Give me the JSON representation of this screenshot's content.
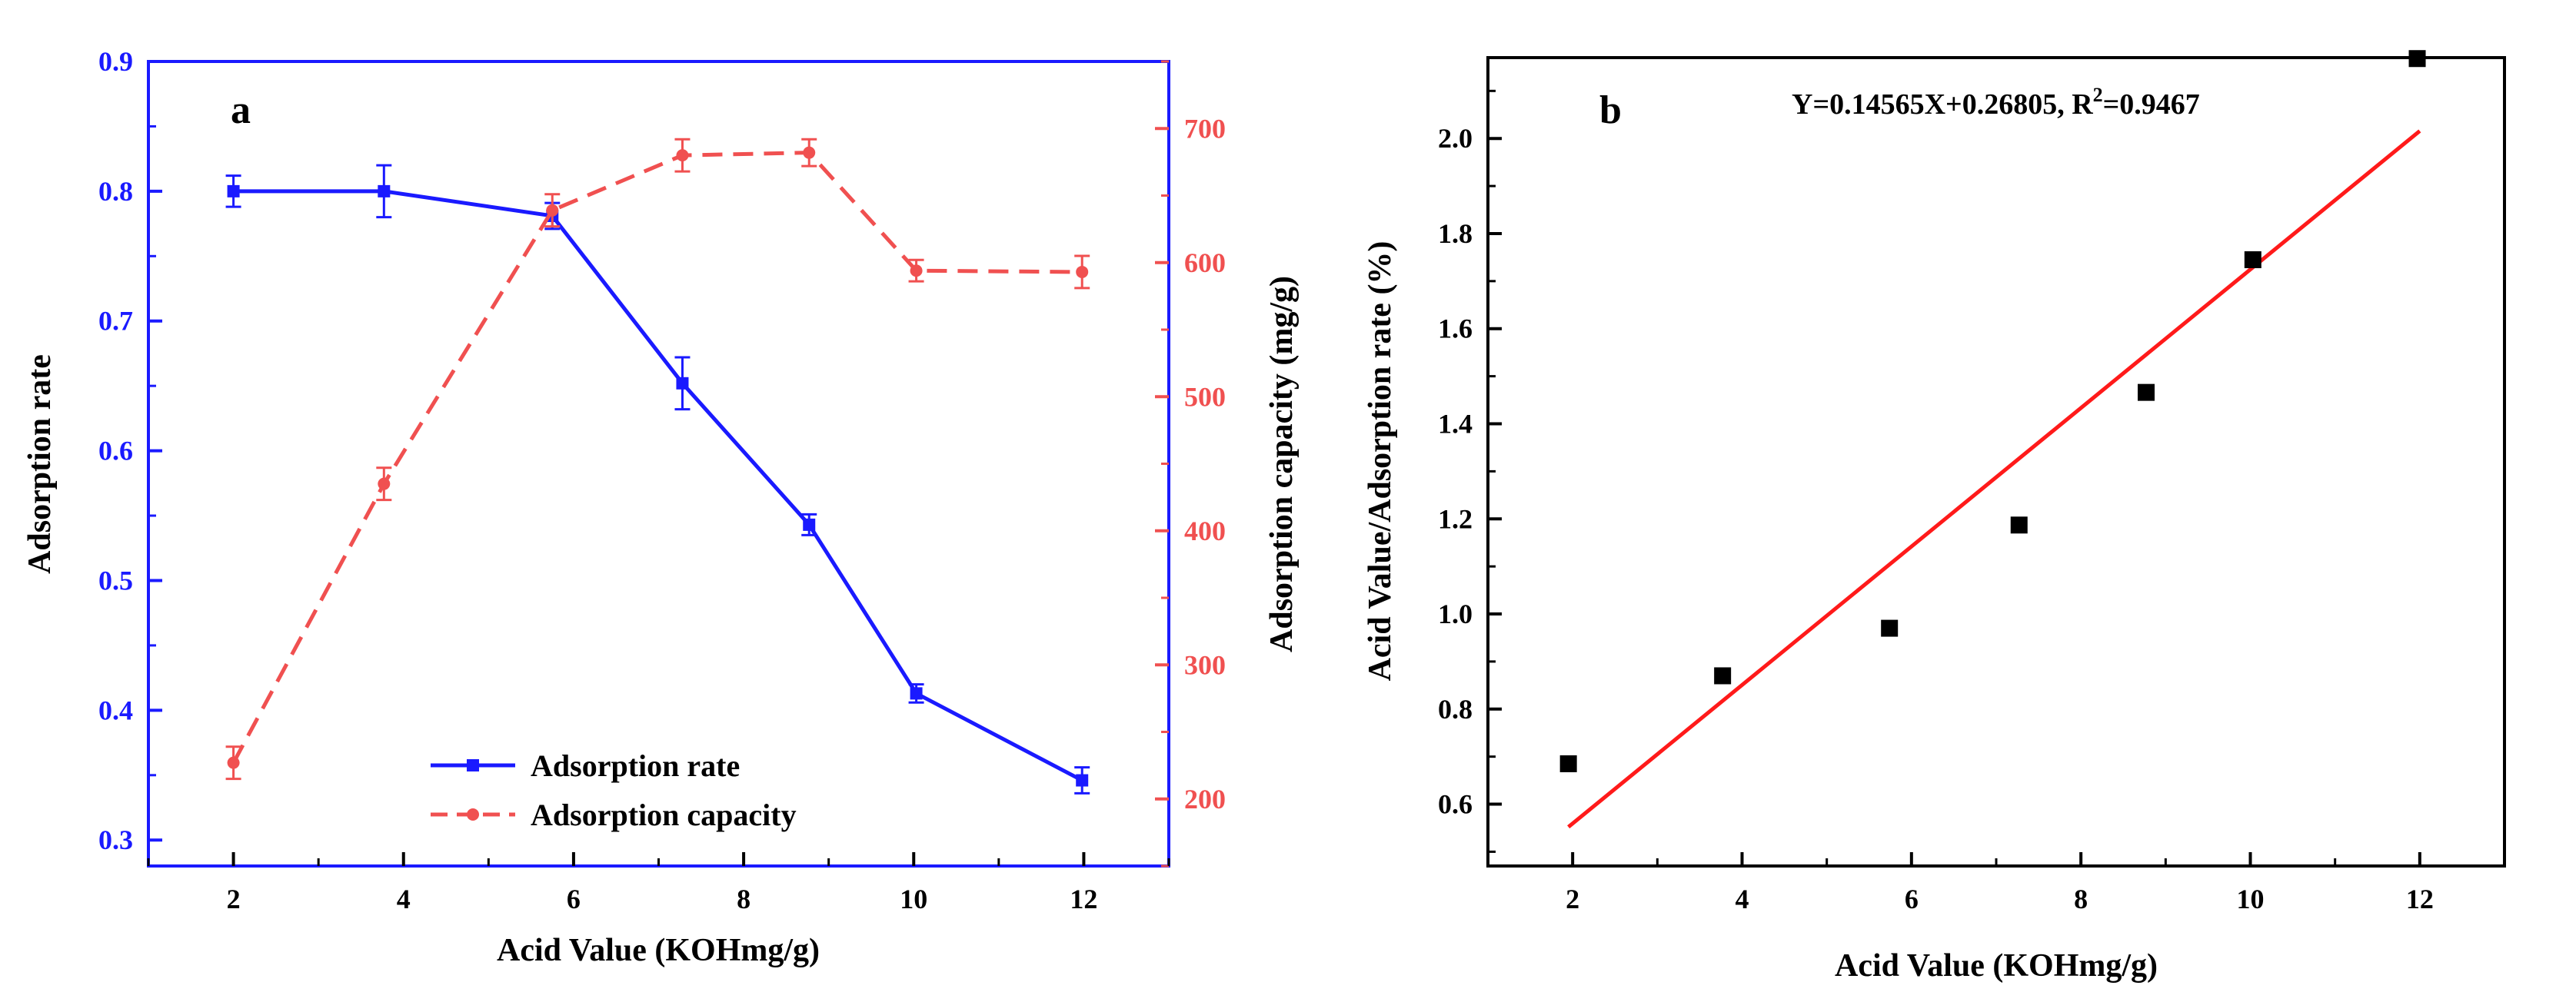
{
  "chart_data": [
    {
      "panel": "a",
      "type": "line",
      "xlabel": "Acid Value (KOHmg/g)",
      "ylabel_left": "Adsorption rate",
      "ylabel_right": "Adsorption capacity (mg/g)",
      "xlim": [
        1,
        13
      ],
      "ylim_left": [
        0.28,
        0.9
      ],
      "ylim_right": [
        150,
        750
      ],
      "x_ticks": [
        2,
        4,
        6,
        8,
        10,
        12
      ],
      "y_ticks_left": [
        0.3,
        0.4,
        0.5,
        0.6,
        0.7,
        0.8,
        0.9
      ],
      "y_ticks_right": [
        200,
        300,
        400,
        500,
        600,
        700
      ],
      "series": [
        {
          "name": "Adsorption rate",
          "axis": "left",
          "color": "#1a1aff",
          "style": "solid",
          "marker": "square",
          "x": [
            2.0,
            3.77,
            5.75,
            7.28,
            8.77,
            10.03,
            11.98
          ],
          "y": [
            0.8,
            0.8,
            0.781,
            0.652,
            0.543,
            0.413,
            0.346
          ],
          "err": [
            0.012,
            0.02,
            0.01,
            0.02,
            0.008,
            0.007,
            0.01
          ]
        },
        {
          "name": "Adsorption capacity",
          "axis": "right",
          "color": "#f05050",
          "style": "dashed",
          "marker": "circle",
          "x": [
            2.0,
            3.77,
            5.75,
            7.28,
            8.77,
            10.03,
            11.98
          ],
          "y": [
            227,
            435,
            639,
            680,
            682,
            594,
            593
          ],
          "err": [
            12,
            12,
            12,
            12,
            10,
            8,
            12
          ]
        }
      ],
      "legend_position": "bottom-center"
    },
    {
      "panel": "b",
      "type": "scatter",
      "xlabel": "Acid Value (KOHmg/g)",
      "ylabel": "Acid Value/Adsorption rate (%)",
      "xlim": [
        1,
        13
      ],
      "ylim": [
        0.47,
        2.17
      ],
      "x_ticks": [
        2,
        4,
        6,
        8,
        10,
        12
      ],
      "y_ticks": [
        0.6,
        0.8,
        1.0,
        1.2,
        1.4,
        1.6,
        1.8,
        2.0
      ],
      "equation": "Y=0.14565X+0.26805, R",
      "r2_superscript": "2",
      "r2_value": "=0.9467",
      "points": {
        "x": [
          1.95,
          3.77,
          5.74,
          7.27,
          8.77,
          10.03,
          11.97
        ],
        "y": [
          0.685,
          0.87,
          0.97,
          1.187,
          1.466,
          1.745,
          2.168
        ]
      },
      "fit": {
        "slope": 0.14565,
        "intercept": 0.26805,
        "x_range": [
          1.95,
          12.0
        ],
        "color": "#ff1a1a"
      }
    }
  ]
}
